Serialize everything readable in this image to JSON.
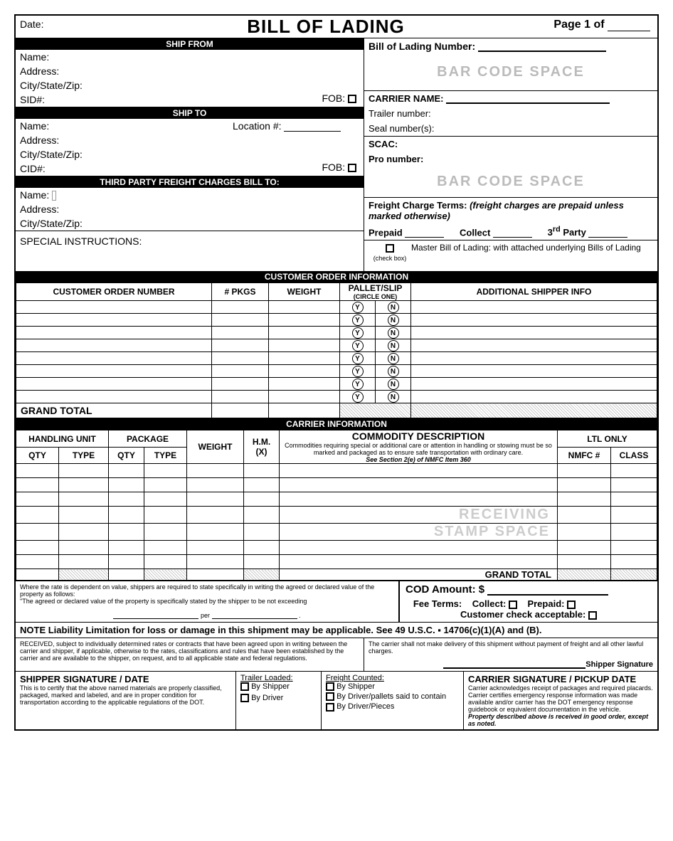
{
  "title": "BILL OF LADING",
  "date_label": "Date:",
  "page_label_prefix": "Page 1 of",
  "ship_from": {
    "header": "SHIP FROM",
    "name": "Name:",
    "address": "Address:",
    "csz": "City/State/Zip:",
    "sid": "SID#:",
    "fob": "FOB:"
  },
  "ship_to": {
    "header": "SHIP TO",
    "name": "Name:",
    "location": "Location #:",
    "address": "Address:",
    "csz": "City/State/Zip:",
    "cid": "CID#:",
    "fob": "FOB:"
  },
  "third_party": {
    "header": "THIRD PARTY FREIGHT CHARGES BILL TO:",
    "name": "Name:",
    "address": "Address:",
    "csz": "City/State/Zip:"
  },
  "special_instructions": "SPECIAL INSTRUCTIONS:",
  "bol_number": "Bill of Lading Number:",
  "barcode_text": "BAR CODE SPACE",
  "carrier_name": "CARRIER NAME:",
  "trailer": "Trailer number:",
  "seal": "Seal number(s):",
  "scac": "SCAC:",
  "pro": "Pro number:",
  "freight_terms": {
    "title": "Freight Charge Terms:",
    "note": "(freight charges are prepaid unless marked otherwise)",
    "prepaid": "Prepaid",
    "collect": "Collect",
    "third": "3rd Party"
  },
  "master_bol": "Master Bill of Lading: with attached underlying Bills of Lading",
  "checkbox_note": "(check box)",
  "customer_order": {
    "band": "CUSTOMER ORDER INFORMATION",
    "cols": {
      "order": "CUSTOMER ORDER NUMBER",
      "pkgs": "# PKGS",
      "weight": "WEIGHT",
      "pallet": "PALLET/SLIP",
      "circle": "(CIRCLE ONE)",
      "info": "ADDITIONAL SHIPPER INFO"
    },
    "y": "Y",
    "n": "N",
    "grand_total": "GRAND TOTAL",
    "rows": 8
  },
  "carrier_info": {
    "band": "CARRIER INFORMATION",
    "handling_unit": "HANDLING UNIT",
    "package": "PACKAGE",
    "qty": "QTY",
    "type": "TYPE",
    "weight": "WEIGHT",
    "hm": "H.M.",
    "hm_x": "(X)",
    "commodity": "COMMODITY DESCRIPTION",
    "commodity_note": "Commodities requiring special or additional care or attention in handling or stowing must be so marked and packaged as to ensure safe transportation with ordinary care.",
    "commodity_ref": "See Section 2(e) of NMFC Item 360",
    "ltl": "LTL ONLY",
    "nmfc": "NMFC #",
    "class": "CLASS",
    "receiving": "RECEIVING",
    "stamp": "STAMP SPACE",
    "grand_total": "GRAND TOTAL",
    "rows": 7
  },
  "declared_value": {
    "line1": "Where the rate is dependent on value, shippers are required to state specifically in writing the agreed or declared value of the property as follows:",
    "line2": "\"The agreed or declared value of the property is specifically stated by the shipper to be not exceeding",
    "per": "per"
  },
  "cod": {
    "amount": "COD Amount:  $",
    "fee_terms": "Fee Terms:",
    "collect": "Collect:",
    "prepaid": "Prepaid:",
    "customer_check": "Customer check acceptable:"
  },
  "note_liability": "NOTE  Liability Limitation for loss or damage in this shipment may be applicable.  See 49 U.S.C. ▪ 14706(c)(1)(A) and (B).",
  "received_text": "RECEIVED, subject to individually determined rates or contracts that have been agreed upon in writing between the carrier and shipper, if applicable, otherwise to the rates, classifications and rules that have been established by the carrier and are available to the shipper, on request, and to all applicable state and federal regulations.",
  "carrier_delivery": "The carrier shall not make delivery of this shipment without payment of freight and all other lawful charges.",
  "shipper_sig_label": "Shipper Signature",
  "signatures": {
    "shipper_title": "SHIPPER SIGNATURE / DATE",
    "shipper_text": "This is to certify that the above named materials are properly classified, packaged, marked and labeled, and are in proper condition for transportation according to the applicable regulations of the DOT.",
    "trailer_loaded": "Trailer Loaded:",
    "freight_counted": "Freight Counted:",
    "by_shipper": "By Shipper",
    "by_driver": "By Driver",
    "by_driver_pallets": "By Driver/pallets said to contain",
    "by_driver_pieces": "By Driver/Pieces",
    "carrier_title": "CARRIER SIGNATURE / PICKUP DATE",
    "carrier_text": "Carrier acknowledges receipt of packages and required placards.  Carrier certifies emergency response information was made available and/or carrier has the DOT emergency response guidebook or equivalent documentation in the vehicle.",
    "carrier_bold": "Property described above is received in good order, except as noted."
  },
  "colors": {
    "black": "#000000",
    "white": "#ffffff",
    "gray": "#bbbbbb"
  }
}
